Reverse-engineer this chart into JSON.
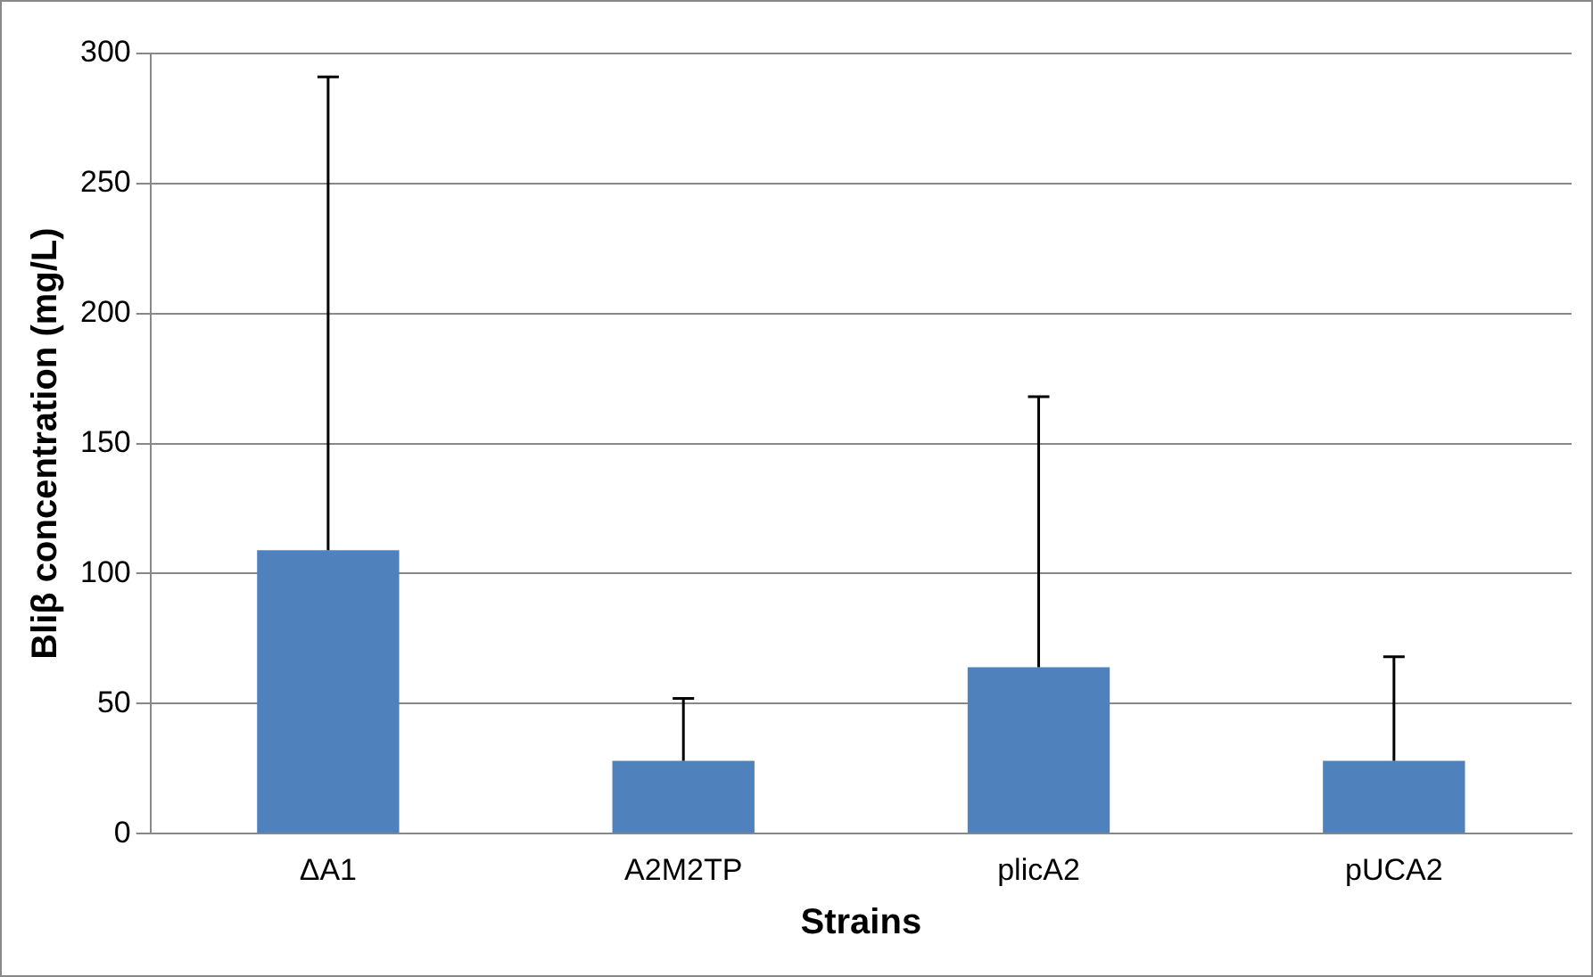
{
  "chart_data": {
    "type": "bar",
    "xlabel": "Strains",
    "ylabel": "Bliβ concentration (mg/L)",
    "categories": [
      "ΔA1",
      "A2M2TP",
      "plicA2",
      "pUCA2"
    ],
    "series": [
      {
        "color": "#4f81bd",
        "values": [
          109,
          28,
          64,
          28
        ],
        "errors": [
          [
            109,
            291
          ],
          [
            28,
            52
          ],
          [
            64,
            168
          ],
          [
            28,
            68
          ]
        ]
      }
    ],
    "ylim": [
      0,
      300
    ],
    "yticks": [
      0,
      50,
      100,
      150,
      200,
      250,
      300
    ],
    "grid": "y",
    "legend": false
  }
}
